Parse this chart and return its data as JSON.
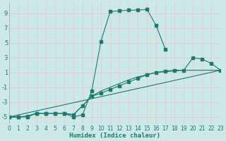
{
  "xlabel": "Humidex (Indice chaleur)",
  "xlim": [
    0,
    23
  ],
  "ylim": [
    -6,
    10.5
  ],
  "xticks": [
    0,
    1,
    2,
    3,
    4,
    5,
    6,
    7,
    8,
    9,
    10,
    11,
    12,
    13,
    14,
    15,
    16,
    17,
    18,
    19,
    20,
    21,
    22,
    23
  ],
  "yticks": [
    -5,
    -3,
    -1,
    1,
    3,
    5,
    7,
    9
  ],
  "background_color": "#cde8e8",
  "grid_color": "#e8c8c8",
  "line_color": "#1a7a6e",
  "figsize": [
    3.2,
    2.0
  ],
  "dpi": 100,
  "line1_x": [
    0,
    1,
    2,
    3,
    4,
    5,
    6,
    7,
    8,
    9,
    10,
    11,
    12,
    13,
    14,
    15,
    16,
    17
  ],
  "line1_y": [
    -5,
    -5,
    -5,
    -4.5,
    -4.5,
    -4.5,
    -4.5,
    -5,
    -4.7,
    -1.5,
    5.2,
    9.2,
    9.3,
    9.4,
    9.4,
    9.5,
    7.3,
    4.1
  ],
  "line2_x": [
    0,
    1,
    2,
    3,
    4,
    5,
    6,
    7,
    8,
    9,
    10,
    11,
    12,
    13,
    14,
    15,
    16,
    17,
    18,
    19,
    20,
    21,
    22,
    23
  ],
  "line2_y": [
    -5,
    -5,
    -4.9,
    -4.5,
    -4.5,
    -4.5,
    -4.5,
    -4.7,
    -3.5,
    -2.2,
    -1.8,
    -1.3,
    -0.8,
    -0.3,
    0.2,
    0.7,
    1.0,
    1.2,
    1.3,
    1.3,
    3.0,
    2.8,
    2.2,
    1.3
  ],
  "line3_x": [
    0,
    1,
    2,
    3,
    4,
    5,
    6,
    7,
    8,
    9,
    10,
    11,
    12,
    13,
    14,
    15,
    16,
    17,
    18,
    19,
    20,
    21,
    22,
    23
  ],
  "line3_y": [
    -5,
    -5,
    -4.9,
    -4.5,
    -4.5,
    -4.5,
    -4.5,
    -4.7,
    -3.5,
    -2.2,
    -1.5,
    -1.0,
    -0.5,
    0.0,
    0.4,
    0.7,
    1.0,
    1.1,
    1.2,
    1.3,
    1.3,
    1.3,
    1.3,
    1.3
  ],
  "line4_x": [
    0,
    23
  ],
  "line4_y": [
    -5,
    1.3
  ]
}
